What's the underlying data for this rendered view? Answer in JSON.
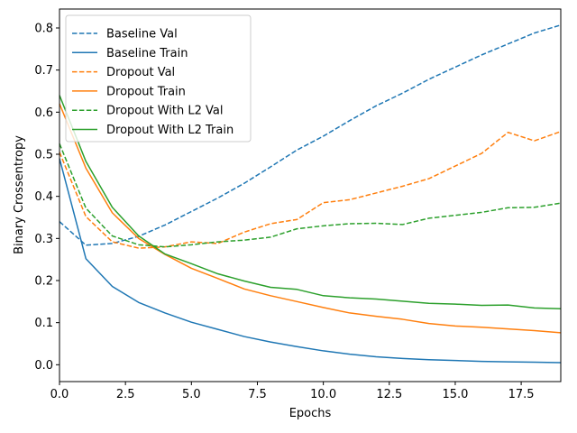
{
  "chart_data": {
    "type": "line",
    "title": "",
    "xlabel": "Epochs",
    "ylabel": "Binary Crossentropy",
    "xlim": [
      0,
      19
    ],
    "ylim": [
      -0.04,
      0.845
    ],
    "xticks": [
      0.0,
      2.5,
      5.0,
      7.5,
      10.0,
      12.5,
      15.0,
      17.5
    ],
    "xtick_labels": [
      "0.0",
      "2.5",
      "5.0",
      "7.5",
      "10.0",
      "12.5",
      "15.0",
      "17.5"
    ],
    "yticks": [
      0.0,
      0.1,
      0.2,
      0.3,
      0.4,
      0.5,
      0.6,
      0.7,
      0.8
    ],
    "ytick_labels": [
      "0.0",
      "0.1",
      "0.2",
      "0.3",
      "0.4",
      "0.5",
      "0.6",
      "0.7",
      "0.8"
    ],
    "grid": false,
    "legend_position": "top-left",
    "x": [
      0,
      1,
      2,
      3,
      4,
      5,
      6,
      7,
      8,
      9,
      10,
      11,
      12,
      13,
      14,
      15,
      16,
      17,
      18,
      19
    ],
    "series": [
      {
        "name": "Baseline Val",
        "color": "#1f77b4",
        "dash": true,
        "values": [
          0.34,
          0.284,
          0.288,
          0.305,
          0.332,
          0.364,
          0.396,
          0.431,
          0.47,
          0.51,
          0.543,
          0.58,
          0.615,
          0.645,
          0.678,
          0.707,
          0.736,
          0.762,
          0.788,
          0.807
        ]
      },
      {
        "name": "Baseline Train",
        "color": "#1f77b4",
        "dash": false,
        "values": [
          0.49,
          0.252,
          0.186,
          0.148,
          0.123,
          0.101,
          0.084,
          0.067,
          0.054,
          0.043,
          0.033,
          0.025,
          0.019,
          0.015,
          0.012,
          0.01,
          0.008,
          0.007,
          0.006,
          0.005
        ]
      },
      {
        "name": "Dropout Val",
        "color": "#ff7f0e",
        "dash": true,
        "values": [
          0.505,
          0.352,
          0.292,
          0.277,
          0.28,
          0.292,
          0.288,
          0.315,
          0.335,
          0.345,
          0.385,
          0.392,
          0.408,
          0.424,
          0.442,
          0.472,
          0.502,
          0.552,
          0.532,
          0.554
        ]
      },
      {
        "name": "Dropout Train",
        "color": "#ff7f0e",
        "dash": false,
        "values": [
          0.62,
          0.467,
          0.361,
          0.3,
          0.262,
          0.229,
          0.205,
          0.18,
          0.164,
          0.15,
          0.136,
          0.123,
          0.115,
          0.108,
          0.098,
          0.092,
          0.089,
          0.085,
          0.081,
          0.076
        ]
      },
      {
        "name": "Dropout With L2 Val",
        "color": "#2ca02c",
        "dash": true,
        "values": [
          0.525,
          0.372,
          0.306,
          0.285,
          0.28,
          0.285,
          0.292,
          0.296,
          0.303,
          0.323,
          0.33,
          0.335,
          0.336,
          0.333,
          0.348,
          0.355,
          0.362,
          0.373,
          0.374,
          0.384
        ]
      },
      {
        "name": "Dropout With L2 Train",
        "color": "#2ca02c",
        "dash": false,
        "values": [
          0.64,
          0.483,
          0.374,
          0.306,
          0.263,
          0.24,
          0.216,
          0.199,
          0.184,
          0.179,
          0.164,
          0.159,
          0.156,
          0.151,
          0.146,
          0.144,
          0.141,
          0.142,
          0.135,
          0.133
        ]
      }
    ]
  }
}
